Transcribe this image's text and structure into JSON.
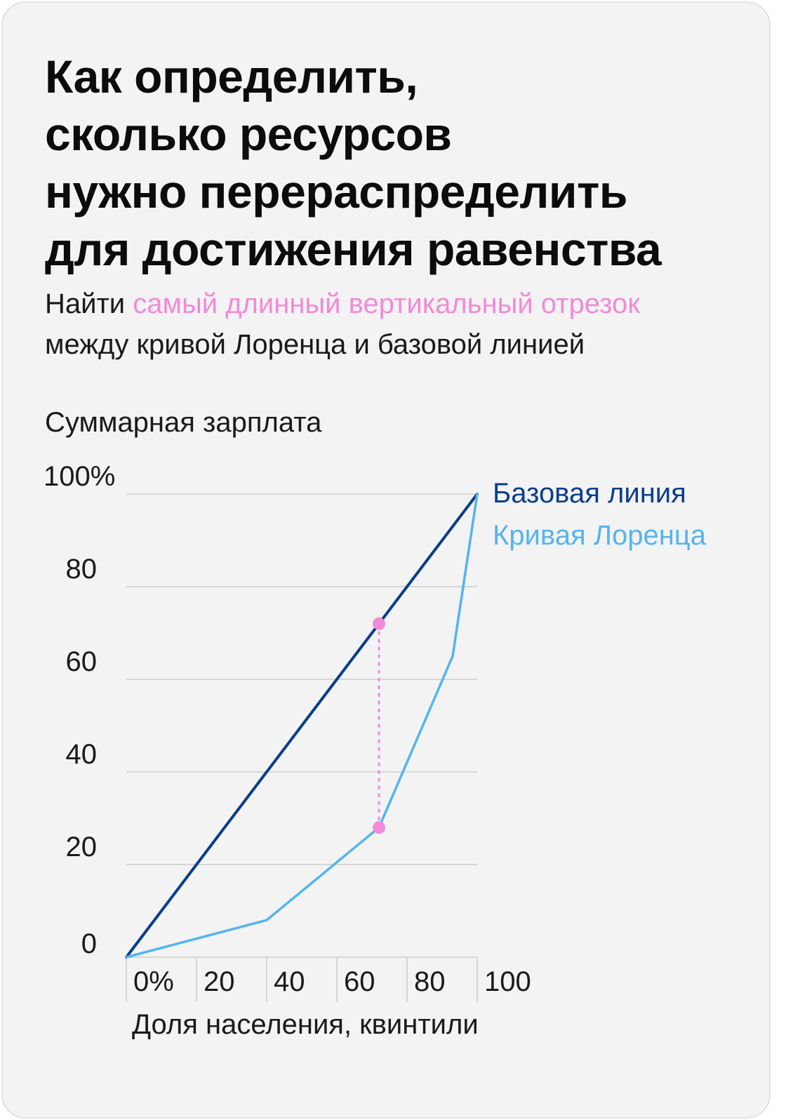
{
  "title_lines": [
    "Как определить,",
    "сколько ресурсов",
    "нужно перераспределить",
    "для достижения равенства"
  ],
  "subtitle": {
    "part1": "Найти ",
    "highlight": "самый длинный вертикальный отрезок",
    "part2": "между кривой Лоренца и базовой линией"
  },
  "colors": {
    "baseline": "#0a3d8c",
    "lorenz": "#55b4f0",
    "highlight": "#f28ad8",
    "grid": "#d6d6d6"
  },
  "chart_data": {
    "type": "line",
    "ylabel": "Суммарная зарплата",
    "xlabel": "Доля населения, квинтили",
    "x_ticks": [
      "0%",
      "20",
      "40",
      "60",
      "80",
      "100"
    ],
    "y_ticks": [
      "0",
      "20",
      "40",
      "60",
      "80",
      "100%"
    ],
    "xlim": [
      0,
      100
    ],
    "ylim": [
      0,
      100
    ],
    "grid": true,
    "legend_position": "top-right",
    "series": [
      {
        "name": "Базовая линия",
        "x": [
          0,
          100
        ],
        "y": [
          0,
          100
        ]
      },
      {
        "name": "Кривая Лоренца",
        "x": [
          0,
          40,
          72,
          93,
          100
        ],
        "y": [
          0,
          8,
          28,
          65,
          100
        ]
      }
    ],
    "annotation": {
      "x": 72,
      "y_top": 72,
      "y_bottom": 28
    }
  }
}
